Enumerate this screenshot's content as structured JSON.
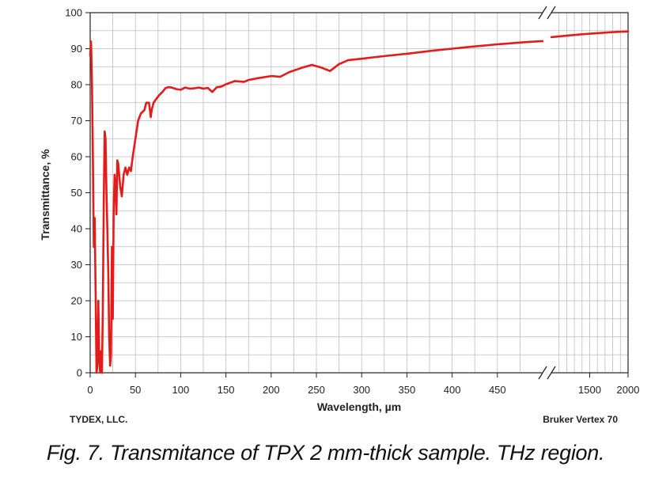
{
  "chart_data": {
    "type": "line",
    "title": "",
    "xlabel": "Wavelength, µm",
    "ylabel": "Transmittance, %",
    "ylim": [
      0,
      100
    ],
    "y_ticks": [
      0,
      10,
      20,
      30,
      40,
      50,
      60,
      70,
      80,
      90,
      100
    ],
    "x_ticks_left": [
      0,
      50,
      100,
      150,
      200,
      250,
      300,
      350,
      400,
      450
    ],
    "x_ticks_right": [
      1500,
      2000
    ],
    "x_axis_break": "broken axis between ~500 and ~1100 µm",
    "grid": true,
    "series": [
      {
        "name": "TPX 2 mm",
        "color": "#e31b1b",
        "segments": [
          [
            [
              0,
              88
            ],
            [
              1,
              92
            ],
            [
              2,
              80
            ],
            [
              3,
              60
            ],
            [
              4,
              35
            ],
            [
              5,
              43
            ],
            [
              6,
              22
            ],
            [
              7,
              0
            ],
            [
              8,
              2
            ],
            [
              9,
              20
            ],
            [
              10,
              5
            ],
            [
              11,
              0
            ],
            [
              12,
              6
            ],
            [
              13,
              0
            ],
            [
              14,
              18
            ],
            [
              15,
              48
            ],
            [
              16,
              67
            ],
            [
              17,
              65
            ],
            [
              18,
              50
            ],
            [
              19,
              40
            ],
            [
              20,
              28
            ],
            [
              21,
              10
            ],
            [
              22,
              2
            ],
            [
              23,
              5
            ],
            [
              24,
              35
            ],
            [
              25,
              15
            ],
            [
              26,
              45
            ],
            [
              27,
              55
            ],
            [
              28,
              52
            ],
            [
              29,
              44
            ],
            [
              30,
              59
            ],
            [
              31,
              58
            ],
            [
              33,
              52
            ],
            [
              35,
              49
            ],
            [
              37,
              55
            ],
            [
              39,
              57
            ],
            [
              41,
              55
            ],
            [
              43,
              57
            ],
            [
              45,
              56
            ],
            [
              47,
              60
            ],
            [
              50,
              65
            ],
            [
              53,
              70
            ],
            [
              56,
              72
            ],
            [
              60,
              73
            ],
            [
              62,
              75
            ],
            [
              65,
              75
            ],
            [
              67,
              71
            ],
            [
              68,
              73
            ],
            [
              70,
              75
            ],
            [
              73,
              76
            ],
            [
              76,
              77
            ],
            [
              80,
              78
            ],
            [
              83,
              79
            ],
            [
              86,
              79.3
            ],
            [
              90,
              79.2
            ],
            [
              95,
              78.8
            ],
            [
              100,
              78.6
            ],
            [
              105,
              79.2
            ],
            [
              110,
              78.9
            ],
            [
              115,
              79
            ],
            [
              120,
              79.2
            ],
            [
              125,
              78.9
            ],
            [
              130,
              79.1
            ],
            [
              135,
              78
            ],
            [
              140,
              79.3
            ],
            [
              145,
              79.5
            ],
            [
              150,
              80.1
            ],
            [
              160,
              81
            ],
            [
              170,
              80.8
            ],
            [
              175,
              81.3
            ],
            [
              185,
              81.8
            ],
            [
              200,
              82.4
            ],
            [
              210,
              82.2
            ],
            [
              220,
              83.5
            ],
            [
              235,
              84.8
            ],
            [
              245,
              85.5
            ],
            [
              255,
              84.8
            ],
            [
              265,
              83.8
            ],
            [
              275,
              85.7
            ],
            [
              285,
              86.8
            ],
            [
              300,
              87.2
            ],
            [
              320,
              87.8
            ],
            [
              350,
              88.6
            ],
            [
              380,
              89.5
            ],
            [
              400,
              90
            ],
            [
              420,
              90.5
            ],
            [
              450,
              91.2
            ],
            [
              480,
              91.8
            ],
            [
              500,
              92.1
            ]
          ],
          [
            [
              1000,
              93.2
            ],
            [
              1200,
              93.6
            ],
            [
              1400,
              94
            ],
            [
              1600,
              94.3
            ],
            [
              1800,
              94.6
            ],
            [
              2000,
              94.8
            ]
          ]
        ]
      }
    ]
  },
  "labels": {
    "company": "TYDEX, LLC.",
    "instrument": "Bruker Vertex 70",
    "caption": "Fig. 7. Transmitance of TPX 2 mm-thick sample. THz region."
  }
}
